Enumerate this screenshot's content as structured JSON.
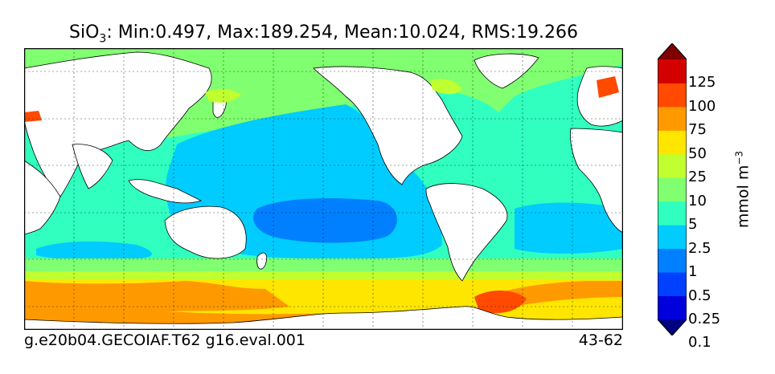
{
  "title": {
    "variable": "SiO",
    "subscript": "3",
    "stats": ": Min:0.497, Max:189.254, Mean:10.024, RMS:19.266"
  },
  "footer": {
    "case_name": "g.e20b04.GECOIAF.T62 g16.eval.001",
    "years": "43-62"
  },
  "colorbar": {
    "unit_base": "mmol m",
    "unit_exp": "−3",
    "ticks": [
      "125",
      "100",
      "75",
      "50",
      "25",
      "10",
      "5",
      "2.5",
      "1",
      "0.5",
      "0.25",
      "0.1"
    ],
    "colors": [
      "#000080",
      "#0000dd",
      "#0040ff",
      "#0080ff",
      "#00ccff",
      "#30ffc0",
      "#80ff70",
      "#c0ff30",
      "#ffe600",
      "#ff9900",
      "#ff4a00",
      "#d40000",
      "#800000"
    ],
    "extend": "both"
  },
  "map": {
    "projection": "cylindrical",
    "grid": "dotted",
    "land_color": "#ffffff",
    "ocean_colors": {
      "southern_ocean_high": "#ff9900",
      "southern_ocean_mid": "#ffe600",
      "north_pacific": "#80ff70",
      "subtropical": "#30ffc0",
      "tropical_pacific": "#00ccff",
      "south_pacific_gyre": "#0080ff",
      "marginal_seas": "#c0ff30",
      "red_sea": "#ff4a00"
    }
  }
}
